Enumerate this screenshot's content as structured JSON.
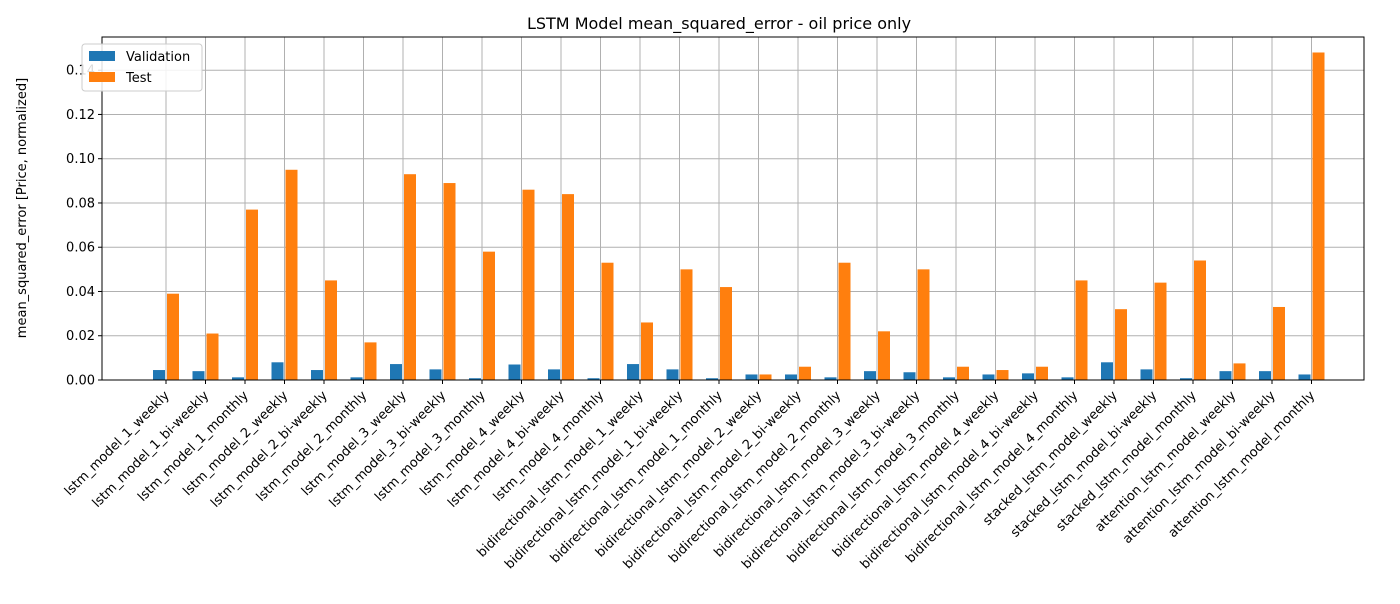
{
  "chart_data": {
    "type": "bar",
    "title": "LSTM Model mean_squared_error - oil price only",
    "xlabel": "",
    "ylabel": "mean_squared_error [Price, normalized]",
    "ylim": [
      0,
      0.155
    ],
    "yticks": [
      0.0,
      0.02,
      0.04,
      0.06,
      0.08,
      0.1,
      0.12,
      0.14
    ],
    "ytick_labels": [
      "0.00",
      "0.02",
      "0.04",
      "0.06",
      "0.08",
      "0.10",
      "0.12",
      "0.14"
    ],
    "grid": true,
    "legend_position": "top-left",
    "categories": [
      "lstm_model_1_weekly",
      "lstm_model_1_bi-weekly",
      "lstm_model_1_monthly",
      "lstm_model_2_weekly",
      "lstm_model_2_bi-weekly",
      "lstm_model_2_monthly",
      "lstm_model_3_weekly",
      "lstm_model_3_bi-weekly",
      "lstm_model_3_monthly",
      "lstm_model_4_weekly",
      "lstm_model_4_bi-weekly",
      "lstm_model_4_monthly",
      "bidirectional_lstm_model_1_weekly",
      "bidirectional_lstm_model_1_bi-weekly",
      "bidirectional_lstm_model_1_monthly",
      "bidirectional_lstm_model_2_weekly",
      "bidirectional_lstm_model_2_bi-weekly",
      "bidirectional_lstm_model_2_monthly",
      "bidirectional_lstm_model_3_weekly",
      "bidirectional_lstm_model_3_bi-weekly",
      "bidirectional_lstm_model_3_monthly",
      "bidirectional_lstm_model_4_weekly",
      "bidirectional_lstm_model_4_bi-weekly",
      "bidirectional_lstm_model_4_monthly",
      "stacked_lstm_model_weekly",
      "stacked_lstm_model_bi-weekly",
      "stacked_lstm_model_monthly",
      "attention_lstm_model_weekly",
      "attention_lstm_model_bi-weekly",
      "attention_lstm_model_monthly"
    ],
    "series": [
      {
        "name": "Validation",
        "color": "#1f77b4",
        "values": [
          0.0045,
          0.004,
          0.0012,
          0.008,
          0.0045,
          0.0012,
          0.0072,
          0.0048,
          0.0008,
          0.007,
          0.0048,
          0.0008,
          0.0072,
          0.0048,
          0.0008,
          0.0025,
          0.0025,
          0.0012,
          0.004,
          0.0035,
          0.0012,
          0.0025,
          0.003,
          0.0012,
          0.008,
          0.0048,
          0.0008,
          0.004,
          0.004,
          0.0025
        ]
      },
      {
        "name": "Test",
        "color": "#ff7f0e",
        "values": [
          0.039,
          0.021,
          0.077,
          0.095,
          0.045,
          0.017,
          0.093,
          0.089,
          0.058,
          0.086,
          0.084,
          0.053,
          0.026,
          0.05,
          0.042,
          0.0025,
          0.006,
          0.053,
          0.022,
          0.05,
          0.006,
          0.0045,
          0.006,
          0.045,
          0.032,
          0.044,
          0.054,
          0.0075,
          0.033,
          0.148
        ]
      }
    ]
  }
}
